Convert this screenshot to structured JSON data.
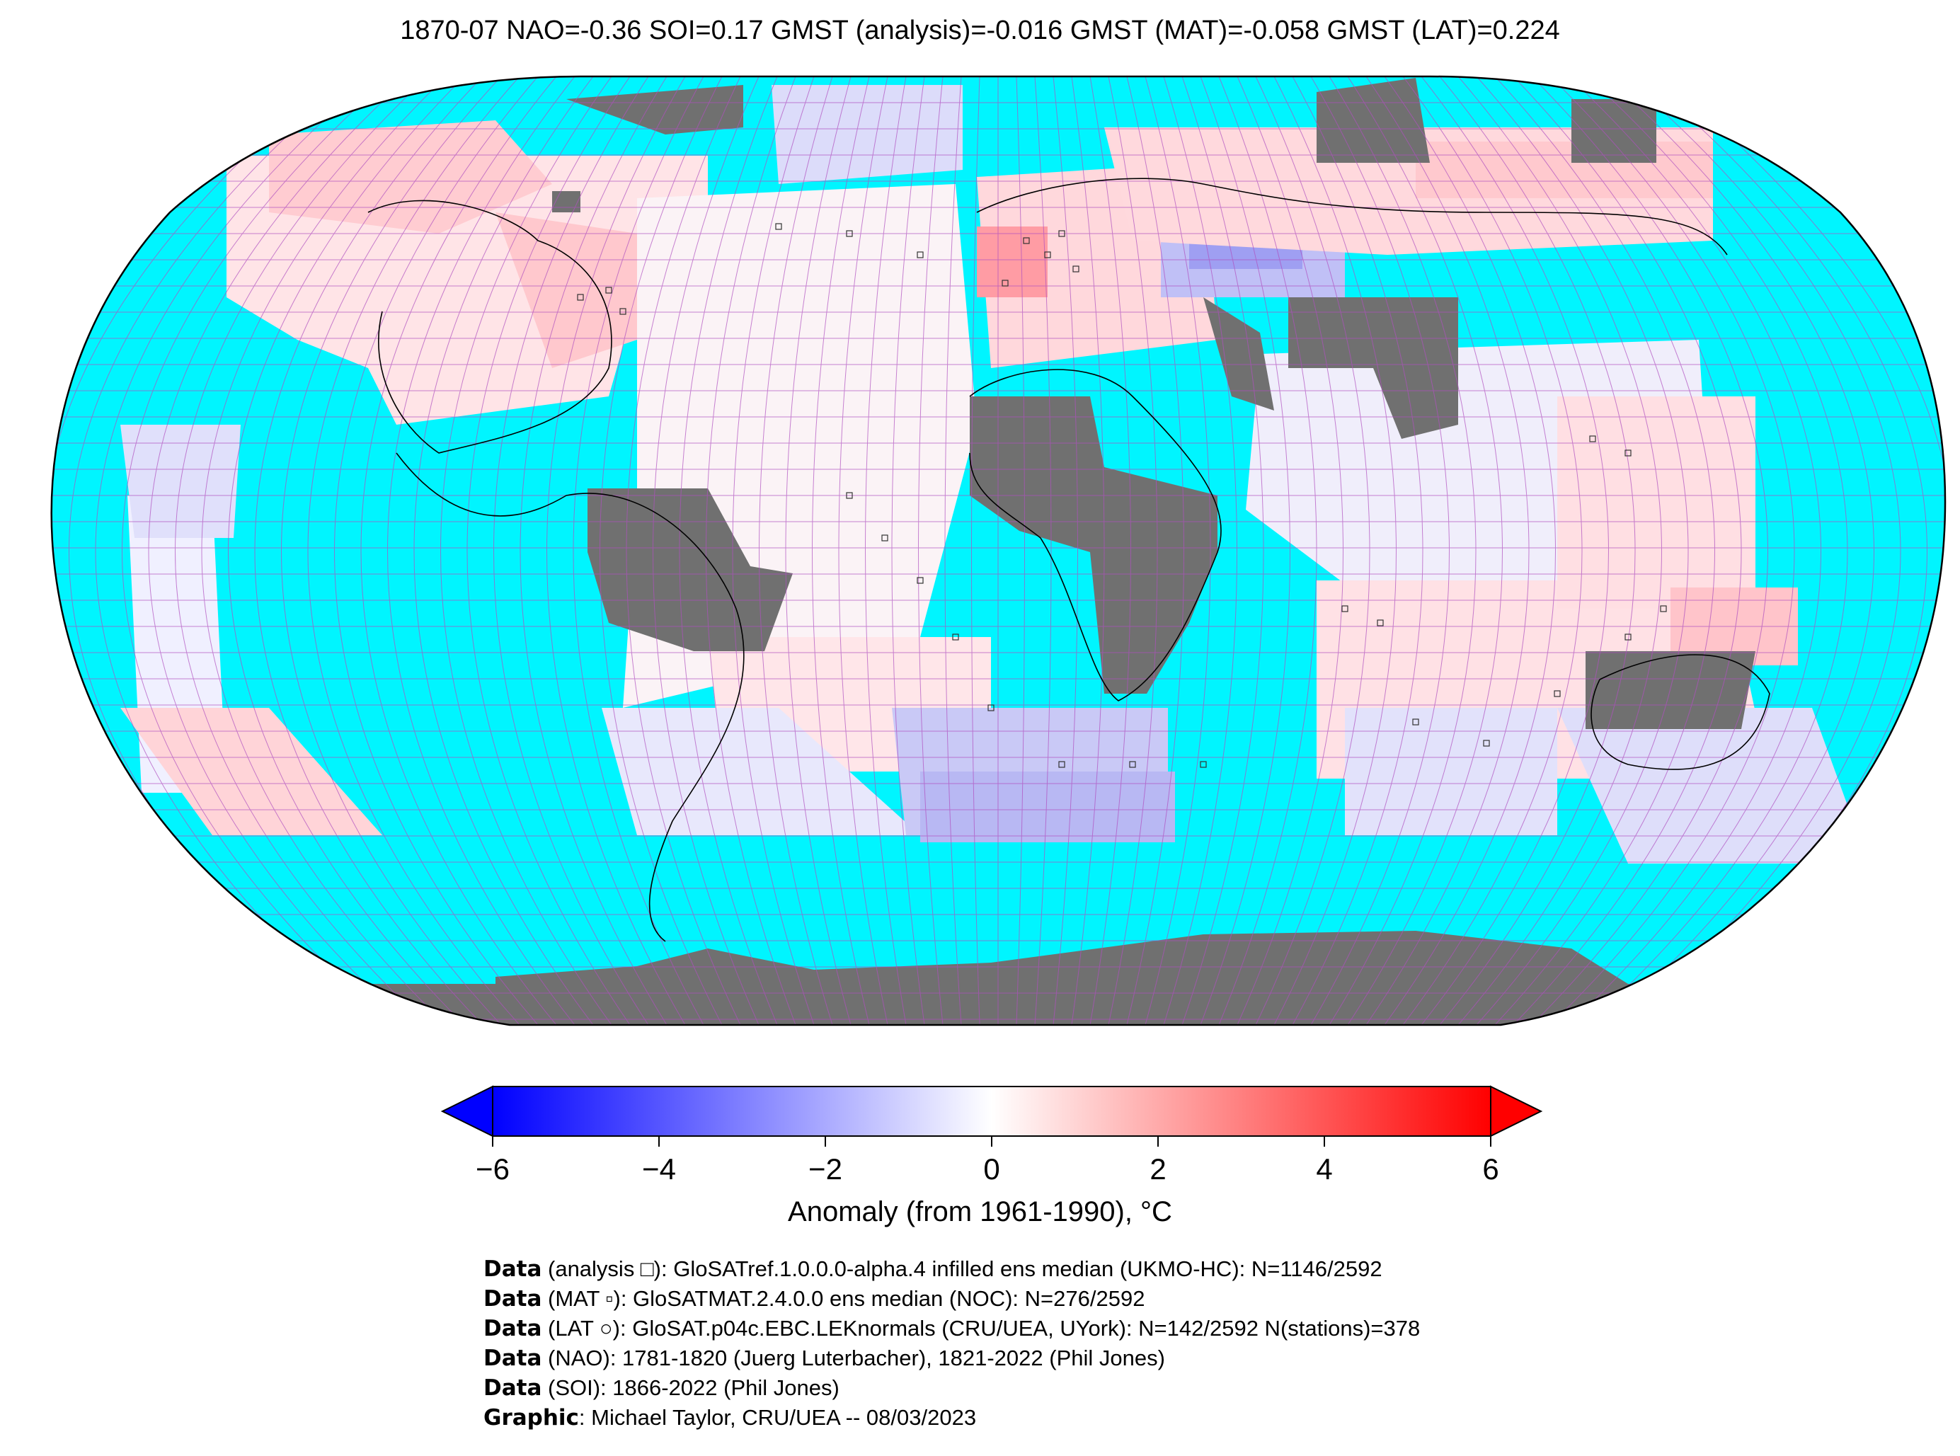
{
  "title": "1870-07 NAO=-0.36 SOI=0.17 GMST (analysis)=-0.016 GMST (MAT)=-0.058 GMST (LAT)=0.224",
  "colors": {
    "ocean": "#00f5ff",
    "land_missing": "#707070",
    "grid": "#b050c0",
    "cold": "#0000ff",
    "neutral": "#ffffff",
    "warm": "#ff0000"
  },
  "colorbar": {
    "ticks": [
      "−6",
      "−4",
      "−2",
      "0",
      "2",
      "4",
      "6"
    ],
    "range": [
      -6,
      6
    ],
    "label": "Anomaly (from 1961-1990), °C"
  },
  "credits": [
    {
      "bold": "Data",
      "text": " (analysis □): GloSATref.1.0.0.0-alpha.4 infilled ens median (UKMO-HC): N=1146/2592"
    },
    {
      "bold": "Data",
      "text": " (MAT ▫): GloSATMAT.2.4.0.0 ens median (NOC): N=276/2592"
    },
    {
      "bold": "Data",
      "text": " (LAT ○): GloSAT.p04c.EBC.LEKnormals (CRU/UEA, UYork): N=142/2592 N(stations)=378"
    },
    {
      "bold": "Data",
      "text": " (NAO): 1781-1820 (Juerg Luterbacher), 1821-2022 (Phil Jones)"
    },
    {
      "bold": "Data",
      "text": " (SOI): 1866-2022 (Phil Jones)"
    },
    {
      "bold": "Graphic",
      "text": ": Michael Taylor, CRU/UEA -- 08/03/2023"
    }
  ]
}
